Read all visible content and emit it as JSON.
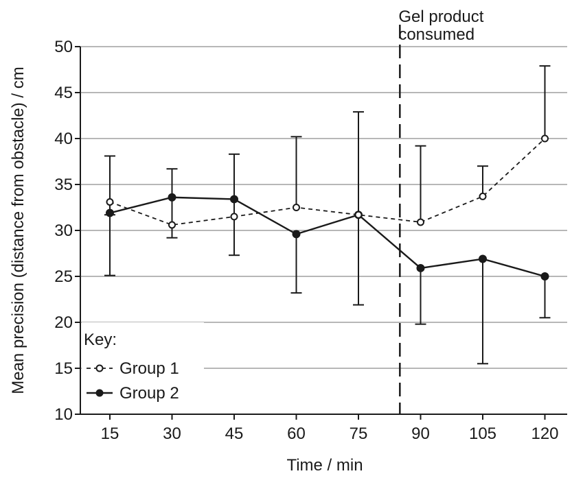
{
  "chart_data": {
    "type": "line",
    "title": "",
    "xlabel": "Time / min",
    "ylabel": "Mean precision (distance from obstacle) / cm",
    "x": [
      15,
      30,
      45,
      60,
      75,
      90,
      105,
      120
    ],
    "x_tick_labels": [
      "15",
      "30",
      "45",
      "60",
      "75",
      "90",
      "105",
      "120"
    ],
    "y_ticks": [
      10,
      15,
      20,
      25,
      30,
      35,
      40,
      45,
      50
    ],
    "y_tick_labels": [
      "10",
      "15",
      "20",
      "25",
      "30",
      "35",
      "40",
      "45",
      "50"
    ],
    "xlim": [
      7,
      121
    ],
    "ylim": [
      10,
      50
    ],
    "grid": "horizontal",
    "legend": {
      "title": "Key:",
      "placement": "bottom-left"
    },
    "annotation": {
      "lines": [
        "Gel product",
        "consumed"
      ],
      "x": 85
    },
    "series": [
      {
        "name": "Group 1",
        "style": "dashed",
        "marker": "open-circle",
        "values": [
          33.1,
          30.6,
          31.5,
          32.5,
          31.7,
          30.9,
          33.7,
          40.0
        ],
        "error_low": [
          31.7,
          29.2,
          27.3,
          32.5,
          31.7,
          30.9,
          33.7,
          40.0
        ],
        "error_high": [
          38.1,
          36.7,
          38.3,
          40.2,
          31.7,
          39.2,
          37.0,
          47.9
        ]
      },
      {
        "name": "Group 2",
        "style": "solid",
        "marker": "filled-circle",
        "values": [
          31.9,
          33.6,
          33.4,
          29.6,
          31.7,
          25.9,
          26.9,
          25.0
        ],
        "error_low": [
          25.1,
          33.6,
          33.4,
          23.2,
          21.9,
          19.8,
          15.5,
          20.5
        ],
        "error_high": [
          31.9,
          33.6,
          33.4,
          29.6,
          42.9,
          25.9,
          26.9,
          25.0
        ]
      }
    ],
    "colors": {
      "line": "#1a1a1a",
      "grid": "#8c8c8c",
      "background": "#ffffff"
    }
  }
}
